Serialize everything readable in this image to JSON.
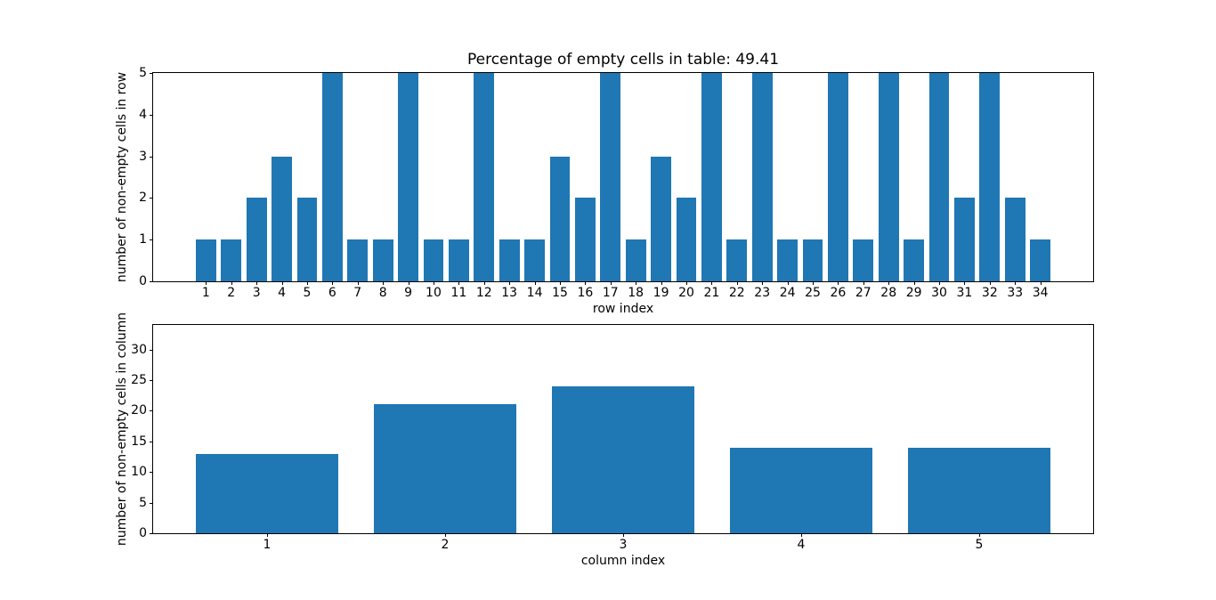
{
  "figure": {
    "background_color": "#ffffff",
    "bar_color": "#1f77b4",
    "axis_color": "#000000"
  },
  "chart_data": [
    {
      "type": "bar",
      "title": "Percentage of empty cells in table: 49.41",
      "xlabel": "row index",
      "ylabel": "number of non-empty cells in row",
      "categories": [
        1,
        2,
        3,
        4,
        5,
        6,
        7,
        8,
        9,
        10,
        11,
        12,
        13,
        14,
        15,
        16,
        17,
        18,
        19,
        20,
        21,
        22,
        23,
        24,
        25,
        26,
        27,
        28,
        29,
        30,
        31,
        32,
        33,
        34
      ],
      "values": [
        1,
        1,
        2,
        3,
        2,
        5,
        1,
        1,
        5,
        1,
        1,
        5,
        1,
        1,
        3,
        2,
        5,
        1,
        3,
        2,
        5,
        1,
        5,
        1,
        1,
        5,
        1,
        5,
        1,
        5,
        2,
        5,
        2,
        1
      ],
      "ylim": [
        0,
        5
      ],
      "yticks": [
        0,
        1,
        2,
        3,
        4,
        5
      ],
      "bar_width": 0.8,
      "x_margin": 0.05,
      "grid": false,
      "legend": null
    },
    {
      "type": "bar",
      "title": "",
      "xlabel": "column index",
      "ylabel": "number of non-empty cells in column",
      "categories": [
        1,
        2,
        3,
        4,
        5
      ],
      "values": [
        13,
        21,
        24,
        14,
        14
      ],
      "ylim": [
        0,
        34
      ],
      "yticks": [
        0,
        5,
        10,
        15,
        20,
        25,
        30
      ],
      "bar_width": 0.8,
      "x_margin": 0.05,
      "grid": false,
      "legend": null
    }
  ]
}
